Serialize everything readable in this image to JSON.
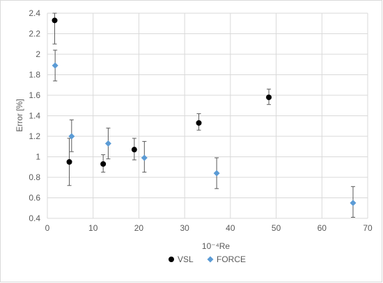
{
  "chart_data": {
    "type": "scatter",
    "xlabel": "10⁻⁴Re",
    "ylabel": "Error [%]",
    "xlim": [
      0,
      70
    ],
    "ylim": [
      0.4,
      2.4
    ],
    "x_ticks": [
      0,
      10,
      20,
      30,
      40,
      50,
      60,
      70
    ],
    "y_ticks": [
      0.4,
      0.6,
      0.8,
      1.0,
      1.2,
      1.4,
      1.6,
      1.8,
      2.0,
      2.2,
      2.4
    ],
    "x_tick_labels": [
      "0",
      "10",
      "20",
      "30",
      "40",
      "50",
      "60",
      "70"
    ],
    "y_tick_labels": [
      "0.4",
      "0.6",
      "0.8",
      "1",
      "1.2",
      "1.4",
      "1.6",
      "1.8",
      "2",
      "2.2",
      "2.4"
    ],
    "grid": true,
    "legend_position": "bottom",
    "series": [
      {
        "name": "VSL",
        "color": "#000000",
        "marker": "circle",
        "points": [
          {
            "x": 1.6,
            "y": 2.33,
            "err_low": 2.1,
            "err_high": 2.4
          },
          {
            "x": 4.8,
            "y": 0.95,
            "err_low": 0.72,
            "err_high": 1.18
          },
          {
            "x": 12.2,
            "y": 0.93,
            "err_low": 0.85,
            "err_high": 1.02
          },
          {
            "x": 19.0,
            "y": 1.07,
            "err_low": 0.97,
            "err_high": 1.18
          },
          {
            "x": 33.1,
            "y": 1.33,
            "err_low": 1.26,
            "err_high": 1.42
          },
          {
            "x": 48.4,
            "y": 1.58,
            "err_low": 1.51,
            "err_high": 1.66
          }
        ]
      },
      {
        "name": "FORCE",
        "color": "#5b9bd5",
        "marker": "diamond",
        "points": [
          {
            "x": 1.7,
            "y": 1.89,
            "err_low": 1.74,
            "err_high": 2.04
          },
          {
            "x": 5.3,
            "y": 1.2,
            "err_low": 1.05,
            "err_high": 1.36
          },
          {
            "x": 13.3,
            "y": 1.13,
            "err_low": 0.98,
            "err_high": 1.28
          },
          {
            "x": 21.2,
            "y": 0.99,
            "err_low": 0.85,
            "err_high": 1.15
          },
          {
            "x": 37.0,
            "y": 0.84,
            "err_low": 0.69,
            "err_high": 0.99
          },
          {
            "x": 66.8,
            "y": 0.55,
            "err_low": 0.41,
            "err_high": 0.71
          }
        ]
      }
    ]
  }
}
